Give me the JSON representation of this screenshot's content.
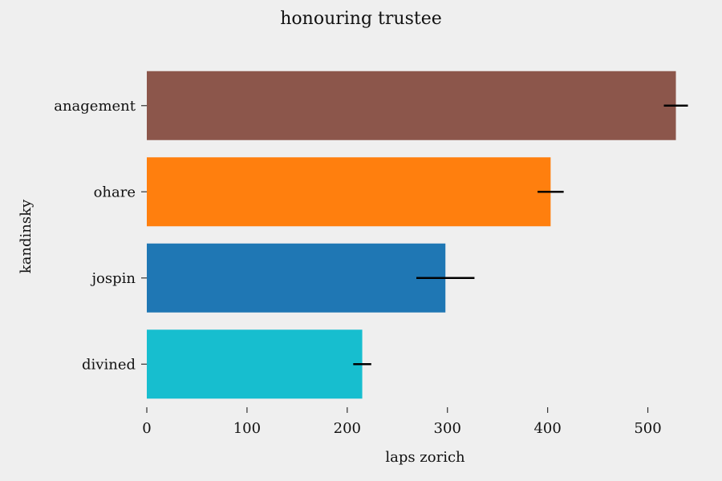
{
  "chart_data": {
    "type": "bar",
    "orientation": "horizontal",
    "title": "honouring trustee",
    "xlabel": "laps zorich",
    "ylabel": "kandinsky",
    "categories": [
      "anagement",
      "ohare",
      "jospin",
      "divined"
    ],
    "values": [
      528,
      403,
      298,
      215
    ],
    "errors": [
      12,
      13,
      29,
      9
    ],
    "colors": [
      "#8c564b",
      "#ff7f0e",
      "#1f77b4",
      "#17becf"
    ],
    "xlim": [
      0,
      550
    ],
    "xticks": [
      0,
      100,
      200,
      300,
      400,
      500
    ],
    "grid": false,
    "legend": "none"
  }
}
